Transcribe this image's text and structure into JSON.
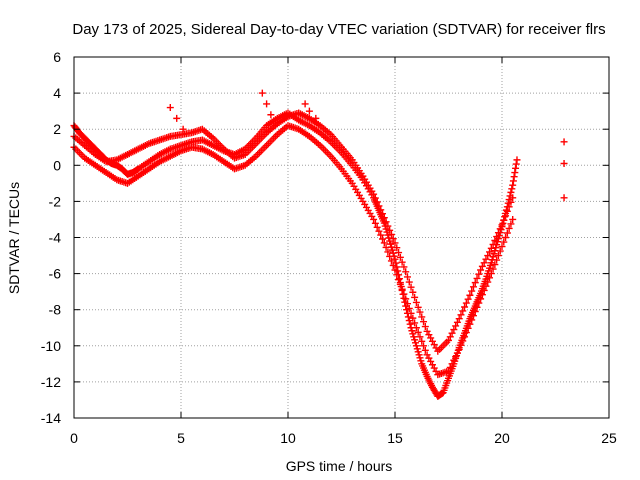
{
  "chart_data": {
    "type": "scatter",
    "title": "Day 173 of 2025, Sidereal Day-to-day VTEC variation (SDTVAR) for receiver flrs",
    "xlabel": "GPS time / hours",
    "ylabel": "SDTVAR / TECUs",
    "xlim": [
      0,
      25
    ],
    "ylim": [
      -14,
      6
    ],
    "xticks": [
      0,
      5,
      10,
      15,
      20,
      25
    ],
    "yticks": [
      -14,
      -12,
      -10,
      -8,
      -6,
      -4,
      -2,
      0,
      2,
      4,
      6
    ],
    "xtick_labels": [
      "0",
      "5",
      "10",
      "15",
      "20",
      "25"
    ],
    "ytick_labels": [
      "-14",
      "-12",
      "-10",
      "-8",
      "-6",
      "-4",
      "-2",
      "0",
      "2",
      "4",
      "6"
    ],
    "grid": true,
    "marker": "+",
    "color": "#ff0000",
    "series": [
      {
        "x": [
          0.0,
          0.25,
          0.5,
          0.75,
          1.0,
          1.25,
          1.5,
          1.75,
          2.0,
          2.25,
          2.5,
          2.75,
          3.0,
          3.5,
          4.0,
          4.5,
          5.0,
          5.5,
          6.0,
          6.5,
          7.0,
          7.5,
          8.0,
          8.5,
          9.0,
          9.5,
          10.0,
          10.5,
          11.0,
          11.5,
          12.0,
          12.5,
          13.0,
          13.5,
          14.0,
          14.25,
          14.5,
          14.75,
          15.0,
          15.25,
          15.5,
          15.75,
          16.0,
          16.25,
          16.5,
          16.75,
          17.0,
          17.25,
          17.5,
          17.75,
          18.0,
          18.25,
          18.5,
          18.75,
          19.0,
          19.25,
          19.5,
          19.75,
          20.0,
          20.25,
          20.5,
          20.7
        ],
        "y": [
          2.2,
          1.8,
          1.5,
          1.2,
          0.9,
          0.6,
          0.3,
          0.1,
          0.0,
          -0.2,
          -0.5,
          -0.4,
          -0.2,
          0.2,
          0.6,
          0.9,
          1.1,
          1.3,
          1.4,
          1.1,
          0.8,
          0.6,
          0.9,
          1.5,
          2.2,
          2.6,
          2.9,
          2.5,
          2.2,
          1.8,
          1.3,
          0.7,
          0.0,
          -0.8,
          -1.8,
          -2.5,
          -3.2,
          -4.2,
          -5.2,
          -6.5,
          -7.8,
          -9.0,
          -10.0,
          -11.0,
          -11.7,
          -12.3,
          -12.8,
          -12.6,
          -11.8,
          -11.0,
          -10.1,
          -9.3,
          -8.5,
          -7.8,
          -7.1,
          -6.3,
          -5.4,
          -4.4,
          -3.4,
          -2.3,
          -1.1,
          0.3
        ]
      },
      {
        "x": [
          0.0,
          0.5,
          1.0,
          1.5,
          2.0,
          2.5,
          3.0,
          3.5,
          4.0,
          4.5,
          5.0,
          5.5,
          6.0,
          6.5,
          7.0,
          7.5,
          8.0,
          8.5,
          9.0,
          9.5,
          10.0,
          10.5,
          11.0,
          11.5,
          12.0,
          12.5,
          13.0,
          13.5,
          14.0,
          14.5,
          15.0,
          15.5,
          16.0,
          16.5,
          17.0,
          17.5,
          18.0,
          18.5,
          19.0,
          19.5,
          20.0,
          20.5
        ],
        "y": [
          1.0,
          0.4,
          0.0,
          -0.4,
          -0.8,
          -1.0,
          -0.6,
          -0.2,
          0.2,
          0.5,
          0.8,
          1.0,
          0.9,
          0.6,
          0.2,
          -0.2,
          0.0,
          0.5,
          1.1,
          1.7,
          2.2,
          2.0,
          1.6,
          1.1,
          0.5,
          -0.2,
          -1.0,
          -2.0,
          -3.0,
          -4.3,
          -5.8,
          -7.4,
          -9.0,
          -10.5,
          -11.6,
          -11.4,
          -10.2,
          -8.8,
          -7.4,
          -6.0,
          -4.5,
          -3.0
        ]
      },
      {
        "x": [
          0.0,
          0.5,
          1.0,
          1.5,
          2.0,
          2.5,
          3.0,
          3.5,
          4.0,
          4.5,
          5.0,
          5.5,
          6.0,
          6.5,
          7.0,
          7.5,
          8.0,
          8.5,
          9.0,
          9.5,
          10.0,
          10.5,
          11.0,
          11.5,
          12.0,
          12.5,
          13.0,
          13.5,
          14.0,
          14.5,
          15.0,
          15.5,
          16.0,
          16.5,
          17.0,
          17.5,
          18.0,
          18.5,
          19.0,
          19.5,
          20.0,
          20.5
        ],
        "y": [
          1.6,
          1.1,
          0.6,
          0.2,
          0.3,
          0.6,
          0.9,
          1.2,
          1.4,
          1.6,
          1.7,
          1.8,
          2.0,
          1.5,
          0.9,
          0.4,
          0.6,
          1.2,
          1.8,
          2.3,
          2.7,
          2.9,
          2.6,
          2.2,
          1.7,
          1.0,
          0.3,
          -0.6,
          -1.6,
          -2.9,
          -4.3,
          -5.9,
          -7.6,
          -9.2,
          -10.3,
          -9.7,
          -8.5,
          -7.2,
          -5.8,
          -4.6,
          -3.3,
          -1.8
        ]
      },
      {
        "x": [
          4.5,
          4.8,
          5.1,
          8.8,
          9.0,
          9.2,
          10.8,
          11.0,
          11.3,
          22.9,
          22.9,
          22.9
        ],
        "y": [
          3.2,
          2.6,
          2.0,
          4.0,
          3.4,
          2.8,
          3.4,
          3.0,
          2.6,
          1.3,
          0.1,
          -1.8
        ]
      }
    ]
  }
}
